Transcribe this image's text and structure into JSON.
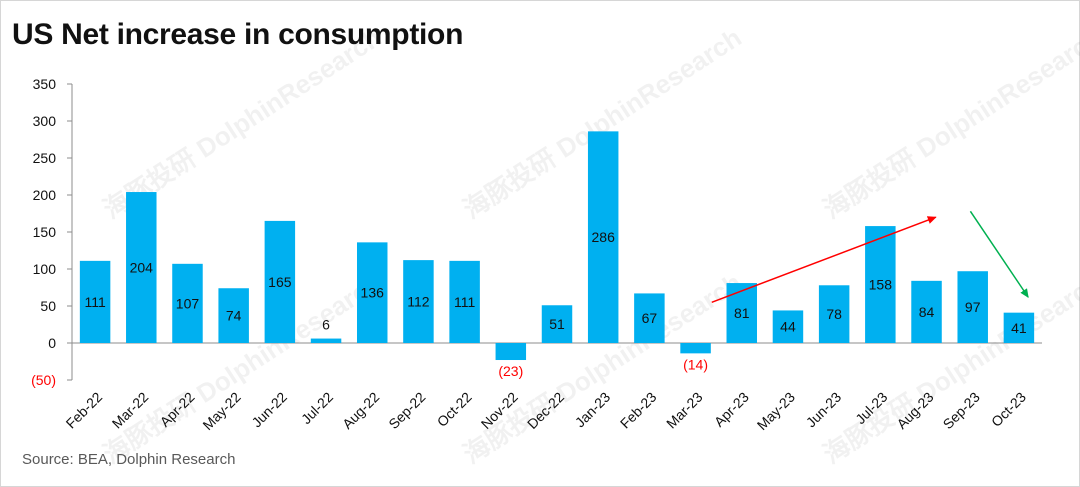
{
  "title": "US Net increase in consumption",
  "source": "Source: BEA, Dolphin Research",
  "watermark": "海豚投研 DolphinResearch",
  "colors": {
    "bar": "#00b0f0",
    "label": "#111111",
    "negative_label": "#ff0000",
    "up_arrow": "#ff0000",
    "down_arrow": "#00b050",
    "axis": "#8c8c8c"
  },
  "chart_data": {
    "type": "bar",
    "categories": [
      "Feb-22",
      "Mar-22",
      "Apr-22",
      "May-22",
      "Jun-22",
      "Jul-22",
      "Aug-22",
      "Sep-22",
      "Oct-22",
      "Nov-22",
      "Dec-22",
      "Jan-23",
      "Feb-23",
      "Mar-23",
      "Apr-23",
      "May-23",
      "Jun-23",
      "Jul-23",
      "Aug-23",
      "Sep-23",
      "Oct-23"
    ],
    "values": [
      111,
      204,
      107,
      74,
      165,
      6,
      136,
      112,
      111,
      -23,
      51,
      286,
      67,
      -14,
      81,
      44,
      78,
      158,
      84,
      97,
      41
    ],
    "data_labels": [
      "111",
      "204",
      "107",
      "74",
      "165",
      "6",
      "136",
      "112",
      "111",
      "(23)",
      "51",
      "286",
      "67",
      "(14)",
      "81",
      "44",
      "78",
      "158",
      "84",
      "97",
      "41"
    ],
    "ylim": [
      -50,
      350
    ],
    "yticks": [
      -50,
      0,
      50,
      100,
      150,
      200,
      250,
      300,
      350
    ],
    "ytick_labels": [
      "(50)",
      "0",
      "50",
      "100",
      "150",
      "200",
      "250",
      "300",
      "350"
    ],
    "grid": false,
    "legend": "none",
    "annotations": [
      {
        "type": "arrow",
        "color": "up_arrow",
        "from": [
          "Mar-23",
          55
        ],
        "to": [
          "Aug-23",
          170
        ]
      },
      {
        "type": "arrow",
        "color": "down_arrow",
        "from": [
          "Sep-23",
          178
        ],
        "to": [
          "Oct-23",
          62
        ]
      }
    ]
  }
}
